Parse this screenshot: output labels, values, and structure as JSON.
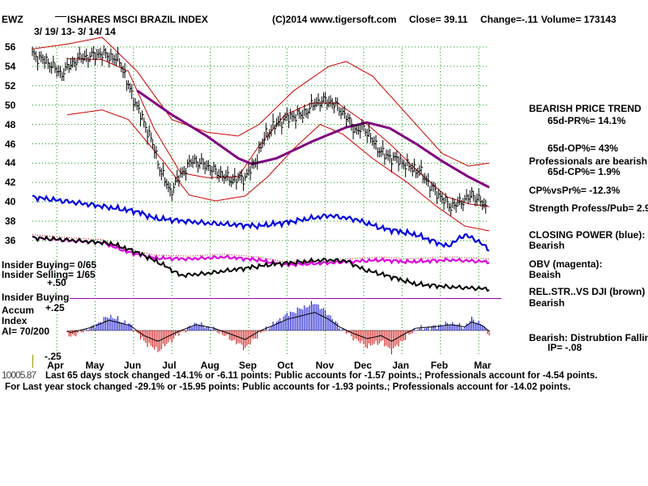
{
  "header": {
    "ticker": "EWZ",
    "name": "ISHARES MSCI BRAZIL INDEX",
    "copyright": "(C)2014 www.tigersoft.com",
    "close": "Close=  39.11",
    "change": "Change=-.11",
    "volume": "Volume= 173143",
    "date_range": "3/ 19/ 13- 3/ 14/ 14"
  },
  "left_labels": {
    "insider_buying": "Insider Buying= 0/65",
    "insider_selling": "Insider Selling= 1/65",
    "plus50": "+.50",
    "insider_buying2": "Insider Buying",
    "accum": "Accum",
    "plus25": "+.25",
    "index": "Index",
    "ai": "AI= 70/200",
    "minus25": "-.25"
  },
  "right_panel": {
    "trend_title": "BEARISH PRICE TREND",
    "pr65": "65d-PR%= 14.1%",
    "op65": "65d-OP%= 43%",
    "prof_bearish": "Professionals are bearish",
    "cp65": "65d-CP%= 1.9%",
    "cp_vs_pr": "CP%vsPr%= -12.3%",
    "strength": "Strength Profess/Pub= 2.9",
    "closing_power": "CLOSING POWER (blue):",
    "closing_power_val": "Bearish",
    "obv": "OBV (magenta):",
    "obv_val": "Beaish",
    "relstr": "REL.STR..VS DJI (brown)",
    "relstr_val": "Bearish",
    "distribution": "Bearish: Distrubtion Falling",
    "ip": "IP= -.08"
  },
  "footer": {
    "line1": "Last 65 days stock changed -14.1% or -6.11 points:  Public accounts for -1.57 points.;  Professionals account for -4.54 points.",
    "line1_prefix": "10005.87",
    "line2": "For Last year stock changed -29.1% or -15.95 points:  Public accounts for -1.93 points.;  Professionals account for -14.02 points."
  },
  "colors": {
    "price": "#000000",
    "band": "#cc0000",
    "ma65": "#800080",
    "closing_power": "#0000dd",
    "obv": "#dd00dd",
    "relstr": "#000000",
    "accum_pos": "#0000cc",
    "accum_neg": "#cc0000",
    "grid": "#009900"
  },
  "chart_data": {
    "type": "line",
    "ylim": [
      35,
      57
    ],
    "yticks": [
      56,
      54,
      52,
      50,
      48,
      46,
      44,
      42,
      40,
      38,
      36
    ],
    "months": [
      "Apr",
      "May",
      "Jun",
      "Jul",
      "Aug",
      "Sep",
      "Oct",
      "Nov",
      "Dec",
      "Jan",
      "Feb",
      "Mar"
    ],
    "price_keypoints": [
      [
        0,
        55.2
      ],
      [
        10,
        54.3
      ],
      [
        16,
        53.2
      ],
      [
        26,
        54.8
      ],
      [
        40,
        55.3
      ],
      [
        50,
        54.6
      ],
      [
        56,
        51.5
      ],
      [
        62,
        49.0
      ],
      [
        68,
        46.5
      ],
      [
        73,
        43.5
      ],
      [
        79,
        41.0
      ],
      [
        85,
        42.8
      ],
      [
        92,
        44.3
      ],
      [
        99,
        43.8
      ],
      [
        106,
        43.0
      ],
      [
        114,
        42.3
      ],
      [
        122,
        42.5
      ],
      [
        128,
        44.2
      ],
      [
        134,
        47.0
      ],
      [
        141,
        48.2
      ],
      [
        148,
        48.8
      ],
      [
        155,
        49.0
      ],
      [
        162,
        50.2
      ],
      [
        168,
        50.5
      ],
      [
        174,
        50.0
      ],
      [
        180,
        48.8
      ],
      [
        186,
        47.2
      ],
      [
        190,
        47.8
      ],
      [
        196,
        46.0
      ],
      [
        202,
        44.8
      ],
      [
        210,
        44.3
      ],
      [
        216,
        43.6
      ],
      [
        222,
        43.2
      ],
      [
        228,
        41.7
      ],
      [
        234,
        40.5
      ],
      [
        240,
        39.5
      ],
      [
        246,
        40.0
      ],
      [
        252,
        40.7
      ],
      [
        256,
        40.3
      ],
      [
        260,
        39.3
      ]
    ],
    "ma65_keypoints": [
      [
        60,
        51.5
      ],
      [
        80,
        49.0
      ],
      [
        100,
        46.8
      ],
      [
        118,
        44.5
      ],
      [
        126,
        43.9
      ],
      [
        140,
        44.5
      ],
      [
        160,
        46.2
      ],
      [
        180,
        47.7
      ],
      [
        192,
        48.2
      ],
      [
        205,
        47.6
      ],
      [
        220,
        46.0
      ],
      [
        235,
        44.2
      ],
      [
        250,
        42.6
      ],
      [
        262,
        41.5
      ]
    ],
    "upper_band_keypoints": [
      [
        0,
        55.8
      ],
      [
        20,
        56.3
      ],
      [
        40,
        57.0
      ],
      [
        60,
        53.5
      ],
      [
        80,
        48.5
      ],
      [
        100,
        47.2
      ],
      [
        118,
        46.8
      ],
      [
        130,
        48.0
      ],
      [
        150,
        51.5
      ],
      [
        170,
        54.0
      ],
      [
        180,
        54.5
      ],
      [
        195,
        53.0
      ],
      [
        215,
        49.0
      ],
      [
        235,
        45.0
      ],
      [
        250,
        43.7
      ],
      [
        262,
        44.0
      ]
    ],
    "mid_band_keypoints": [
      [
        20,
        54.8
      ],
      [
        40,
        54.7
      ],
      [
        55,
        53.5
      ],
      [
        70,
        47.5
      ],
      [
        85,
        43.0
      ],
      [
        100,
        42.5
      ],
      [
        118,
        42.6
      ],
      [
        130,
        45.8
      ],
      [
        145,
        49.0
      ],
      [
        160,
        50.2
      ],
      [
        175,
        50.2
      ],
      [
        190,
        48.3
      ],
      [
        205,
        46.0
      ],
      [
        222,
        43.0
      ],
      [
        238,
        40.5
      ],
      [
        250,
        39.8
      ],
      [
        262,
        39.5
      ]
    ],
    "lower_band_keypoints": [
      [
        20,
        49.0
      ],
      [
        40,
        49.5
      ],
      [
        55,
        48.5
      ],
      [
        75,
        44.2
      ],
      [
        90,
        40.7
      ],
      [
        105,
        40.1
      ],
      [
        122,
        40.6
      ],
      [
        135,
        42.6
      ],
      [
        150,
        45.5
      ],
      [
        165,
        48.0
      ],
      [
        178,
        47.0
      ],
      [
        195,
        44.5
      ],
      [
        215,
        42.0
      ],
      [
        232,
        39.5
      ],
      [
        248,
        37.5
      ],
      [
        262,
        37.0
      ]
    ],
    "closing_power_keypoints": [
      [
        0,
        40.5
      ],
      [
        30,
        39.8
      ],
      [
        60,
        39.0
      ],
      [
        70,
        38.3
      ],
      [
        100,
        37.8
      ],
      [
        130,
        37.5
      ],
      [
        150,
        38.0
      ],
      [
        170,
        38.6
      ],
      [
        185,
        38.2
      ],
      [
        200,
        37.3
      ],
      [
        220,
        36.6
      ],
      [
        238,
        35.4
      ],
      [
        248,
        36.6
      ],
      [
        255,
        36.0
      ],
      [
        262,
        35.1
      ]
    ],
    "obv_keypoints": [
      [
        0,
        36.3
      ],
      [
        20,
        36.0
      ],
      [
        40,
        35.8
      ],
      [
        55,
        34.8
      ],
      [
        70,
        34.2
      ],
      [
        90,
        34.1
      ],
      [
        110,
        34.3
      ],
      [
        130,
        34.0
      ],
      [
        145,
        33.5
      ],
      [
        160,
        33.6
      ],
      [
        180,
        33.8
      ],
      [
        200,
        34.0
      ],
      [
        215,
        33.8
      ],
      [
        240,
        34.0
      ],
      [
        262,
        33.8
      ]
    ],
    "relstr_keypoints": [
      [
        0,
        36.3
      ],
      [
        25,
        36.0
      ],
      [
        45,
        35.7
      ],
      [
        60,
        34.8
      ],
      [
        75,
        33.5
      ],
      [
        85,
        32.4
      ],
      [
        100,
        32.6
      ],
      [
        120,
        33.1
      ],
      [
        140,
        33.6
      ],
      [
        155,
        33.8
      ],
      [
        168,
        34.0
      ],
      [
        180,
        33.9
      ],
      [
        190,
        33.0
      ],
      [
        205,
        32.3
      ],
      [
        220,
        31.5
      ],
      [
        240,
        31.2
      ],
      [
        262,
        31.0
      ]
    ],
    "accum_keypoints": [
      [
        0,
        0.02
      ],
      [
        8,
        0.12
      ],
      [
        14,
        0.04
      ],
      [
        22,
        -0.08
      ],
      [
        34,
        0.04
      ],
      [
        44,
        0.2
      ],
      [
        56,
        0.08
      ],
      [
        64,
        -0.15
      ],
      [
        72,
        -0.28
      ],
      [
        84,
        -0.05
      ],
      [
        94,
        0.1
      ],
      [
        104,
        0.02
      ],
      [
        114,
        -0.12
      ],
      [
        122,
        -0.24
      ],
      [
        130,
        -0.05
      ],
      [
        138,
        0.08
      ],
      [
        146,
        0.22
      ],
      [
        154,
        0.3
      ],
      [
        162,
        0.38
      ],
      [
        170,
        0.22
      ],
      [
        176,
        0.05
      ],
      [
        184,
        -0.1
      ],
      [
        192,
        -0.22
      ],
      [
        200,
        -0.15
      ],
      [
        206,
        -0.28
      ],
      [
        214,
        -0.1
      ],
      [
        220,
        0.02
      ],
      [
        230,
        0.05
      ],
      [
        240,
        0.1
      ],
      [
        248,
        0.05
      ],
      [
        252,
        0.16
      ],
      [
        258,
        0.08
      ],
      [
        262,
        -0.05
      ]
    ]
  }
}
